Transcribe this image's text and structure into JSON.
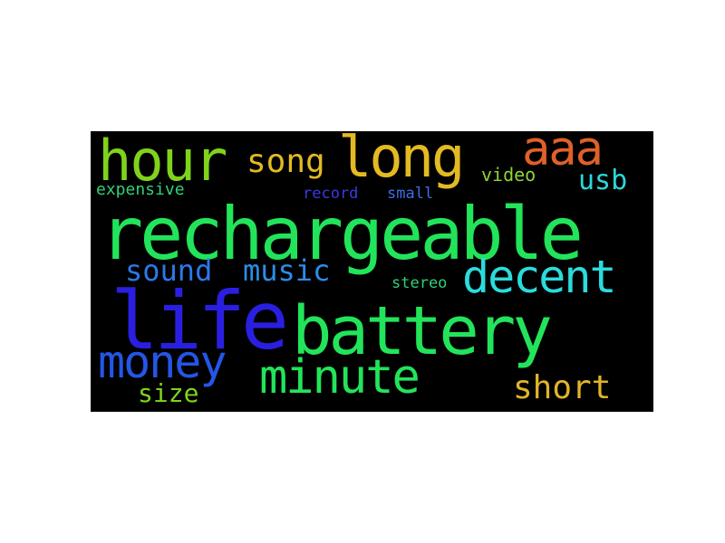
{
  "word_cloud": {
    "background": "#000000",
    "words": [
      {
        "text": "hour",
        "color": "#7fd31c"
      },
      {
        "text": "song",
        "color": "#e3ba22"
      },
      {
        "text": "long",
        "color": "#e3ba22"
      },
      {
        "text": "aaa",
        "color": "#e0602a"
      },
      {
        "text": "video",
        "color": "#8fd23a"
      },
      {
        "text": "usb",
        "color": "#2ad8d8"
      },
      {
        "text": "expensive",
        "color": "#2fd17a"
      },
      {
        "text": "record",
        "color": "#3a3ae0"
      },
      {
        "text": "small",
        "color": "#3a6ee6"
      },
      {
        "text": "rechargeable",
        "color": "#22e45a"
      },
      {
        "text": "sound",
        "color": "#2b78ea"
      },
      {
        "text": "music",
        "color": "#2b8ee6"
      },
      {
        "text": "decent",
        "color": "#2adcdc"
      },
      {
        "text": "stereo",
        "color": "#2fd17a"
      },
      {
        "text": "life",
        "color": "#2a1fe0"
      },
      {
        "text": "battery",
        "color": "#22e45a"
      },
      {
        "text": "money",
        "color": "#2456e6"
      },
      {
        "text": "minute",
        "color": "#22e45a"
      },
      {
        "text": "short",
        "color": "#e0b42a"
      },
      {
        "text": "size",
        "color": "#7fd31c"
      }
    ]
  }
}
